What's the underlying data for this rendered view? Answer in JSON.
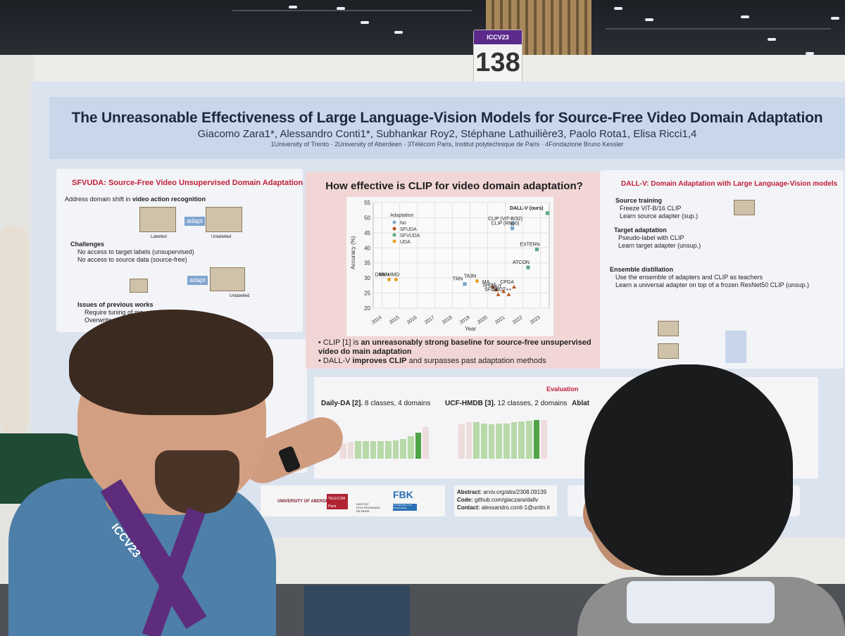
{
  "booth": {
    "number": "138",
    "conf_label": "ICCV23"
  },
  "poster": {
    "title": "The Unreasonable Effectiveness of Large Language-Vision Models for Source-Free Video Domain Adaptation",
    "authors": "Giacomo Zara1*, Alessandro Conti1*, Subhankar Roy2, Stéphane Lathuilière3, Paolo Rota1, Elisa Ricci1,4",
    "affiliations": "1University of Trento · 2University of Aberdeen · 3Télécom Paris, Institut polytechnique de Paris · 4Fondazione Bruno Kessler",
    "left_panel": {
      "title": "SFVUDA: Source-Free Video Unsupervised Domain Adaptation",
      "line1_prefix": "Address domain shift in ",
      "line1_bold": "video action recognition",
      "adapt": "adapt",
      "labelled": "Labelled",
      "unlabelled": "Unlabelled",
      "challenges_title": "Challenges",
      "challenge1": "No access to target labels (unsupervised)",
      "challenge2": "No access to source data (source-free)",
      "issues_title": "Issues of previous works",
      "issue1": "Require tuning of ma",
      "issue2": "Overwrite source"
    },
    "center_panel": {
      "title": "How effective is CLIP for video domain adaptation?",
      "bullet1_a": "CLIP [1] is ",
      "bullet1_b": "an unreasonably strong baseline for source-free unsupervised video do main adaptation",
      "bullet2_a": "DALL-V ",
      "bullet2_b": "improves CLIP",
      "bullet2_c": " and surpasses past adaptation methods"
    },
    "right_panel": {
      "title": "DALL-V: Domain Adaptation with Large Language-Vision models",
      "source_title": "Source training",
      "source1": "Freeze ViT-B/16 CLIP",
      "source2": "Learn source adapter (sup.)",
      "target_title": "Target adaptation",
      "target1": "Pseudo-label with CLIP",
      "target2": "Learn target adapter (unsup.)",
      "ensemble_title": "Ensemble distillation",
      "ensemble1": "Use the ensemble of adapters and CLIP as teachers",
      "ensemble2": "Learn a universal adapter on top of a frozen ResNet50 CLIP (unsup.)"
    },
    "evaluation": {
      "title": "Evaluation",
      "daily_title": "Daily-DA [2].",
      "daily_desc": " 8 classes, 4 domains",
      "ucf_title": "UCF-HMDB [3].",
      "ucf_desc": " 12 classes, 2 domains",
      "ablation_title": "Ablat"
    },
    "bottom": {
      "abstract_label": "Abstract:",
      "abstract_value": "arxiv.org/abs/2308.09139",
      "code_label": "Code:",
      "code_value": "github.com/giaczara/dallv",
      "contact_label": "Contact:",
      "contact_value": "alessandro.conti-1@unitn.it",
      "logo1": "UNIVERSITY OF ABERDEEN",
      "logo2": "TELECOM Paris",
      "logo3": "INSTITUT POLYTECHNIQUE DE PARIS",
      "logo4": "FBK",
      "logo4_sub": "FUTURE BUILT ON KNOWLEDGE"
    }
  },
  "lanyard": "ICCV23",
  "chart_data": {
    "type": "scatter",
    "xlabel": "Year",
    "ylabel": "Accuracy (%)",
    "xlim": [
      2013.5,
      2023.5
    ],
    "ylim": [
      20,
      55
    ],
    "xticks": [
      2014,
      2015,
      2016,
      2017,
      2018,
      2019,
      2020,
      2021,
      2022,
      2023
    ],
    "yticks": [
      20,
      25,
      30,
      35,
      40,
      45,
      50,
      55
    ],
    "legend_title": "Adaptation",
    "legend": [
      "No",
      "SFUDA",
      "SFVUDA",
      "UDA"
    ],
    "colors": {
      "No": "#7aa6c8",
      "SFUDA": "#b8541f",
      "SFVUDA": "#5aa882",
      "UDA": "#e7a228"
    },
    "points": [
      {
        "label": "DANN",
        "x": 2014.4,
        "y": 29.5,
        "group": "UDA"
      },
      {
        "label": "MK-MMD",
        "x": 2014.8,
        "y": 29.5,
        "group": "UDA"
      },
      {
        "label": "TRN",
        "x": 2018.7,
        "y": 28,
        "group": "No"
      },
      {
        "label": "TA3N",
        "x": 2019.4,
        "y": 29,
        "group": "UDA"
      },
      {
        "label": "SHOT",
        "x": 2020.5,
        "y": 26,
        "group": "SFUDA"
      },
      {
        "label": "SFDA",
        "x": 2020.6,
        "y": 24.5,
        "group": "SFUDA"
      },
      {
        "label": "MA",
        "x": 2020.3,
        "y": 27,
        "group": "SFUDA"
      },
      {
        "label": "BAIT",
        "x": 2020.9,
        "y": 25.5,
        "group": "SFUDA"
      },
      {
        "label": "SHOT++",
        "x": 2021.2,
        "y": 24.5,
        "group": "SFUDA"
      },
      {
        "label": "CPGA",
        "x": 2021.5,
        "y": 27,
        "group": "SFUDA"
      },
      {
        "label": "ATCON",
        "x": 2022.3,
        "y": 33.5,
        "group": "SFVUDA"
      },
      {
        "label": "EXTERN",
        "x": 2022.8,
        "y": 39.5,
        "group": "SFVUDA"
      },
      {
        "label": "CLIP (ViT-B/32)",
        "x": 2021.4,
        "y": 48,
        "group": "No"
      },
      {
        "label": "CLIP (RN50)",
        "x": 2021.4,
        "y": 46.5,
        "group": "No"
      },
      {
        "label": "DALL-V (ours)",
        "x": 2023.4,
        "y": 51.5,
        "group": "SFVUDA"
      }
    ]
  },
  "bars_daily": [
    36,
    38,
    40,
    40,
    40,
    41,
    41,
    42,
    45,
    52,
    60,
    72
  ],
  "bars_ucf": [
    82,
    86,
    86,
    84,
    82,
    84,
    84,
    86,
    88,
    90,
    92,
    92
  ]
}
